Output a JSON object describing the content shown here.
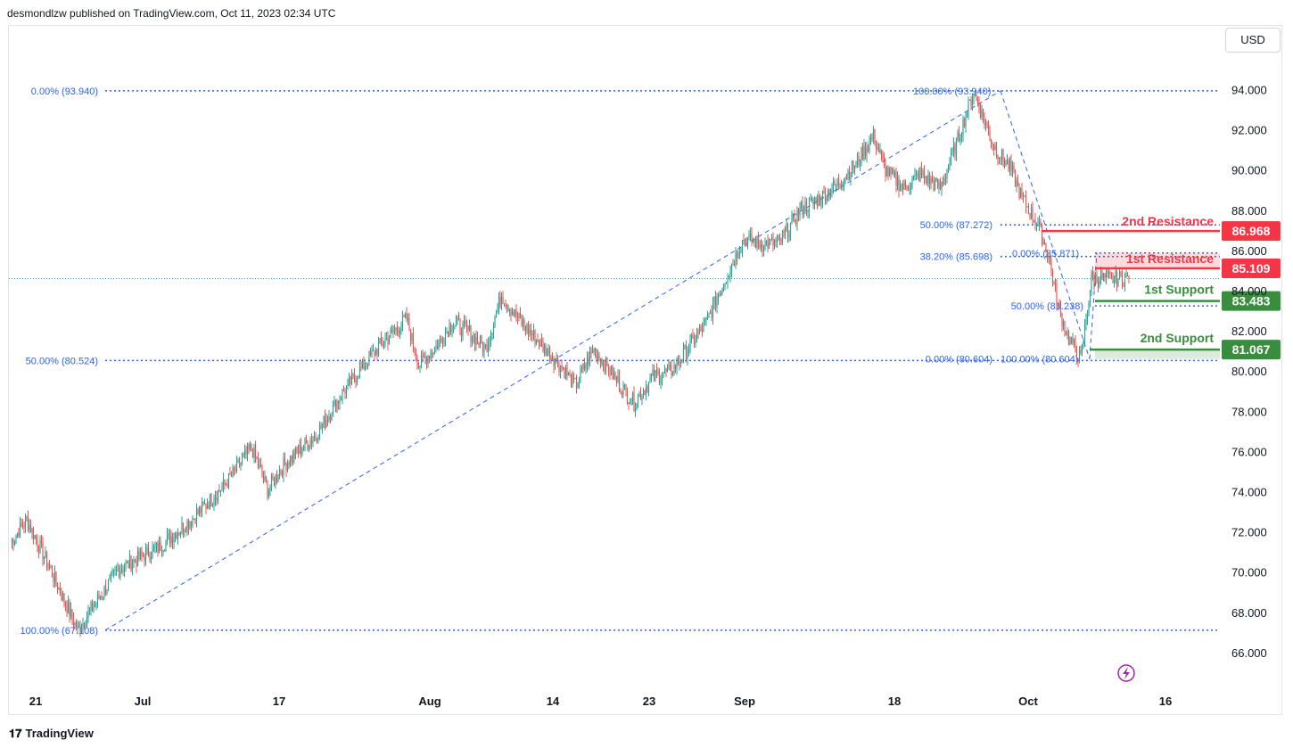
{
  "header": {
    "publisher_line": "desmondlzw published on TradingView.com, Oct 11, 2023 02:34 UTC"
  },
  "currency_button": "USD",
  "footer": {
    "brand": "TradingView"
  },
  "colors": {
    "up": "#26a69a",
    "down": "#ef5350",
    "fib": "#2962ff",
    "resistance": "#f23645",
    "support": "#388e3c"
  },
  "icons": {
    "logo": "tradingview-logo-icon",
    "flash": "lightning-icon"
  },
  "chart_data": {
    "type": "candlestick",
    "title": "",
    "ylim": [
      65.2,
      95.5
    ],
    "x_ticks": [
      "21",
      "Jul",
      "17",
      "Aug",
      "14",
      "23",
      "Sep",
      "18",
      "Oct",
      "16"
    ],
    "y_ticks": [
      "94.000",
      "92.000",
      "90.000",
      "88.000",
      "86.000",
      "84.000",
      "82.000",
      "80.000",
      "78.000",
      "76.000",
      "74.000",
      "72.000",
      "70.000",
      "68.000",
      "66.000"
    ],
    "fib_levels": [
      {
        "label": "0.00% (93.940)",
        "value": 93.94
      },
      {
        "label": "50.00% (80.524)",
        "value": 80.524
      },
      {
        "label": "100.00% (67.108)",
        "value": 67.108
      },
      {
        "label": "100.00% (93.940)",
        "value": 93.94
      },
      {
        "label": "50.00% (87.272)",
        "value": 87.272
      },
      {
        "label": "0.00% (80.604)",
        "value": 80.604
      },
      {
        "label": "38.20% (85.698)",
        "value": 85.698
      },
      {
        "label": "0.00% (85.871)",
        "value": 85.871
      },
      {
        "label": "50.00% (83.238)",
        "value": 83.238
      },
      {
        "label": "100.00% (80.604)",
        "value": 80.604
      }
    ],
    "levels": [
      {
        "name": "2nd Resistance",
        "value": 86.968,
        "label": "86.968"
      },
      {
        "name": "1st Resistance",
        "value": 85.109,
        "label": "85.109"
      },
      {
        "name": "1st Support",
        "value": 83.483,
        "label": "83.483"
      },
      {
        "name": "2nd Support",
        "value": 81.067,
        "label": "81.067"
      }
    ],
    "price_path": {
      "start": "Jun 20, 2023",
      "interval": "2 hours",
      "points": [
        [
          0,
          71.5
        ],
        [
          12,
          72.6
        ],
        [
          25,
          70.8
        ],
        [
          42,
          68.3
        ],
        [
          50,
          67.1
        ],
        [
          80,
          70.1
        ],
        [
          110,
          71.2
        ],
        [
          138,
          72.8
        ],
        [
          162,
          74.5
        ],
        [
          180,
          76.2
        ],
        [
          192,
          74.1
        ],
        [
          205,
          75.4
        ],
        [
          228,
          76.8
        ],
        [
          250,
          79.1
        ],
        [
          275,
          81.2
        ],
        [
          296,
          82.6
        ],
        [
          305,
          80.3
        ],
        [
          318,
          81.2
        ],
        [
          330,
          82.4
        ],
        [
          342,
          82.0
        ],
        [
          355,
          81.1
        ],
        [
          367,
          83.8
        ],
        [
          378,
          82.7
        ],
        [
          390,
          81.8
        ],
        [
          412,
          80.2
        ],
        [
          422,
          79.3
        ],
        [
          436,
          81.1
        ],
        [
          448,
          80.0
        ],
        [
          466,
          78.4
        ],
        [
          480,
          79.7
        ],
        [
          494,
          80.0
        ],
        [
          520,
          82.4
        ],
        [
          535,
          84.7
        ],
        [
          548,
          86.6
        ],
        [
          562,
          86.3
        ],
        [
          575,
          86.4
        ],
        [
          590,
          88.0
        ],
        [
          605,
          88.6
        ],
        [
          618,
          89.3
        ],
        [
          632,
          90.3
        ],
        [
          645,
          91.7
        ],
        [
          654,
          90.0
        ],
        [
          668,
          89.1
        ],
        [
          680,
          89.8
        ],
        [
          695,
          89.1
        ],
        [
          708,
          91.5
        ],
        [
          720,
          93.9
        ],
        [
          735,
          91.2
        ],
        [
          748,
          90.0
        ],
        [
          756,
          88.6
        ],
        [
          768,
          87.3
        ],
        [
          776,
          85.7
        ],
        [
          783,
          83.2
        ],
        [
          791,
          81.6
        ],
        [
          800,
          80.6
        ],
        [
          808,
          84.6
        ],
        [
          825,
          84.6
        ],
        [
          836,
          84.6
        ]
      ]
    }
  }
}
